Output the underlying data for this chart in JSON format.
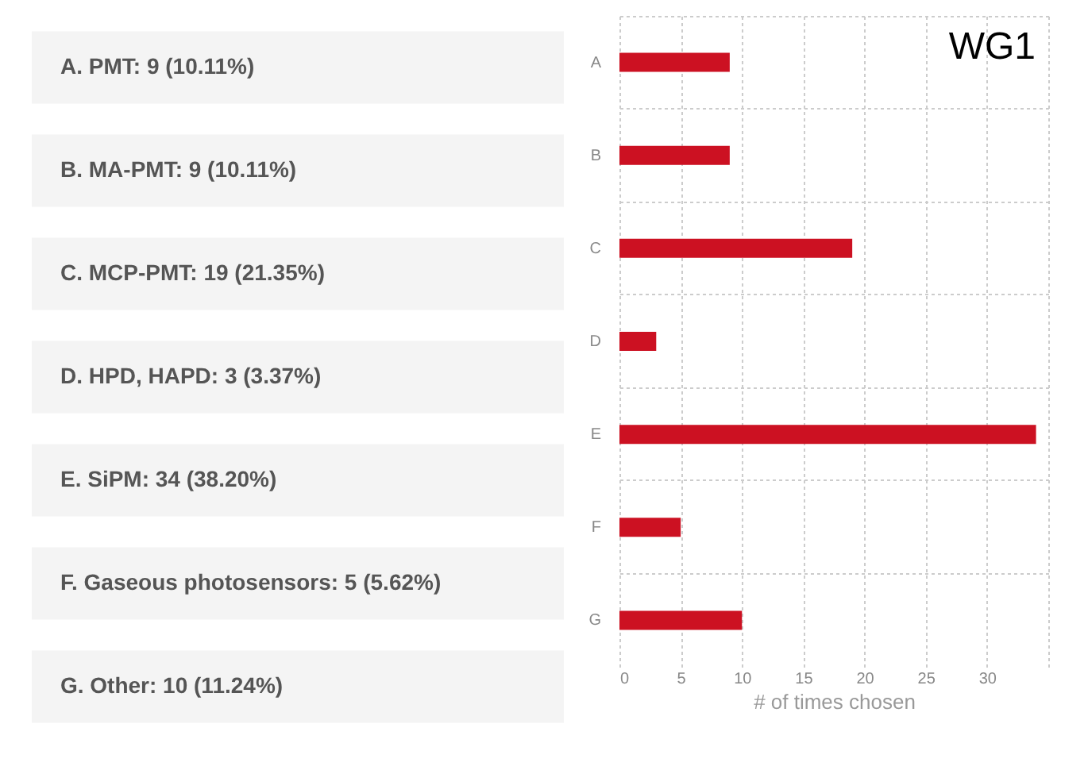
{
  "chart_data": [
    {
      "type": "other",
      "annotations": [
        "A. PMT: 9 (10.11%)",
        "B. MA-PMT: 9 (10.11%)",
        "C. MCP-PMT: 19 (21.35%)",
        "D. HPD, HAPD: 3 (3.37%)",
        "E. SiPM: 34 (38.20%)",
        "F. Gaseous photosensors: 5 (5.62%)",
        "G. Other: 10 (11.24%)"
      ]
    },
    {
      "type": "bar",
      "orientation": "horizontal",
      "categories": [
        "A",
        "B",
        "C",
        "D",
        "E",
        "F",
        "G"
      ],
      "values": [
        9,
        9,
        19,
        3,
        34,
        5,
        10
      ],
      "color": "#cc1122",
      "xlabel": "# of times chosen",
      "xlim": [
        0,
        35
      ],
      "xticks": [
        0,
        5,
        10,
        15,
        20,
        25,
        30,
        {
          "value": 35,
          "label": null
        }
      ],
      "grid": true,
      "annotations": [
        "WG1"
      ]
    }
  ]
}
